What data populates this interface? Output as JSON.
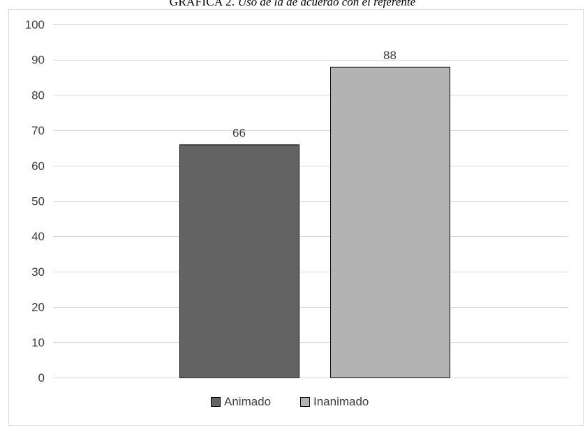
{
  "title": {
    "prefix": "GRÁFICA 2.",
    "text": " Uso de la de acuerdo con el referente"
  },
  "chart_data": {
    "type": "bar",
    "categories": [
      "Animado",
      "Inanimado"
    ],
    "values": [
      66,
      88
    ],
    "colors": [
      "#636363",
      "#b3b3b3"
    ],
    "ylim": [
      0,
      100
    ],
    "yticks": [
      0,
      10,
      20,
      30,
      40,
      50,
      60,
      70,
      80,
      90,
      100
    ],
    "grid": true,
    "legend_position": "bottom",
    "legend": [
      "Animado",
      "Inanimado"
    ]
  }
}
